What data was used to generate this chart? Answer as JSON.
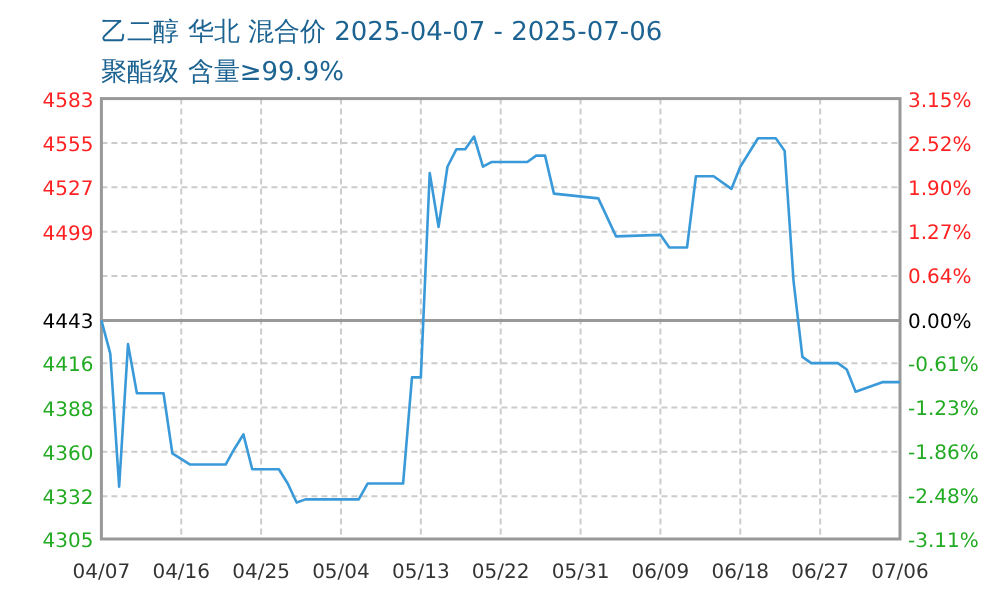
{
  "chart_data": {
    "type": "line",
    "title": "乙二醇 华北 混合价 2025-04-07 - 2025-07-06",
    "subtitle": "聚酯级 含量≥99.9%",
    "x": [
      "--04-07",
      "--04-08",
      "--04-09",
      "--04-10",
      "--04-11",
      "--04-14",
      "--04-15",
      "--04-17",
      "--04-21",
      "--04-22",
      "--04-23",
      "--04-24",
      "--04-27",
      "--04-28",
      "--04-29",
      "--04-30",
      "--05-06",
      "--05-07",
      "--05-11",
      "--05-12",
      "--05-13",
      "--05-14",
      "--05-15",
      "--05-16",
      "--05-17",
      "--05-18",
      "--05-19",
      "--05-20",
      "--05-21",
      "--05-25",
      "--05-26",
      "--05-27",
      "--05-28",
      "--06-02",
      "--06-04",
      "--06-09",
      "--06-10",
      "--06-12",
      "--06-13",
      "--06-15",
      "--06-17",
      "--06-18",
      "--06-20",
      "--06-22",
      "--06-23",
      "--06-24",
      "--06-25",
      "--06-26",
      "--06-29",
      "--06-30",
      "--07-01",
      "--07-04",
      "--07-06"
    ],
    "series": [
      {
        "color": "#3a9ad9",
        "values": [
          4443,
          4422,
          4338,
          4428,
          4397,
          4397,
          4359,
          4352,
          4352,
          4362,
          4371,
          4349,
          4349,
          4340,
          4328,
          4330,
          4330,
          4340,
          4340,
          4407,
          4407,
          4536,
          4502,
          4540,
          4551,
          4551,
          4559,
          4540,
          4543,
          4543,
          4547,
          4547,
          4523,
          4520,
          4496,
          4497,
          4489,
          4489,
          4534,
          4534,
          4526,
          4540,
          4558,
          4558,
          4550,
          4468,
          4420,
          4416,
          4416,
          4412,
          4398,
          4404,
          4404
        ]
      }
    ],
    "xlim": [
      "--04-07",
      "--07-06"
    ],
    "xticks": [
      {
        "value": "--04-07",
        "label": "04/07"
      },
      {
        "value": "--04-16",
        "label": "04/16"
      },
      {
        "value": "--04-25",
        "label": "04/25"
      },
      {
        "value": "--05-04",
        "label": "05/04"
      },
      {
        "value": "--05-13",
        "label": "05/13"
      },
      {
        "value": "--05-22",
        "label": "05/22"
      },
      {
        "value": "--05-31",
        "label": "05/31"
      },
      {
        "value": "--06-09",
        "label": "06/09"
      },
      {
        "value": "--06-18",
        "label": "06/18"
      },
      {
        "value": "--06-27",
        "label": "06/27"
      },
      {
        "value": "--07-06",
        "label": "07/06"
      }
    ],
    "ylim": [
      4305,
      4583
    ],
    "yticks": [
      4305,
      4332,
      4360,
      4388,
      4416,
      4443,
      {
        "value": 4471,
        "label": null
      },
      4499,
      4527,
      4555,
      4583
    ],
    "y2lim": [
      -3.11,
      3.15
    ],
    "y2ticks": [
      {
        "value": -3.11,
        "label": "-3.11%"
      },
      {
        "value": -2.48,
        "label": "-2.48%"
      },
      {
        "value": -1.86,
        "label": "-1.86%"
      },
      {
        "value": -1.23,
        "label": "-1.23%"
      },
      {
        "value": -0.61,
        "label": "-0.61%"
      },
      {
        "value": 0,
        "label": "0.00%"
      },
      {
        "value": 0.64,
        "label": "0.64%"
      },
      {
        "value": 1.27,
        "label": "1.27%"
      },
      {
        "value": 1.9,
        "label": "1.90%"
      },
      {
        "value": 2.52,
        "label": "2.52%"
      },
      {
        "value": 3.15,
        "label": "3.15%"
      }
    ],
    "ref_lines": [
      {
        "axis": "y",
        "value": 4443,
        "color": "#999999"
      }
    ],
    "grid": true,
    "marker": "none",
    "line_style": "solid"
  }
}
